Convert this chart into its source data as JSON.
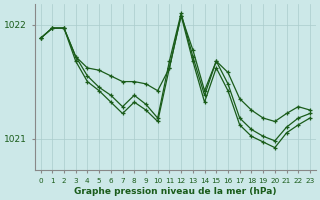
{
  "title": "Graphe pression niveau de la mer (hPa)",
  "bg_color": "#cce8e8",
  "grid_color": "#aacccc",
  "line_color": "#1a5c1a",
  "xlim": [
    -0.5,
    23.5
  ],
  "ylim": [
    1020.72,
    1022.18
  ],
  "yticks": [
    1021,
    1022
  ],
  "xticks": [
    0,
    1,
    2,
    3,
    4,
    5,
    6,
    7,
    8,
    9,
    10,
    11,
    12,
    13,
    14,
    15,
    16,
    17,
    18,
    19,
    20,
    21,
    22,
    23
  ],
  "line_main": [
    1021.88,
    1021.97,
    1021.97,
    1021.72,
    1021.55,
    1021.45,
    1021.38,
    1021.28,
    1021.38,
    1021.3,
    1021.18,
    1021.68,
    1022.1,
    1021.72,
    1021.38,
    1021.68,
    1021.48,
    1021.18,
    1021.08,
    1021.02,
    1020.98,
    1021.1,
    1021.18,
    1021.22
  ],
  "line_upper": [
    1021.88,
    1021.97,
    1021.97,
    1021.72,
    1021.62,
    1021.6,
    1021.55,
    1021.5,
    1021.5,
    1021.48,
    1021.42,
    1021.62,
    1022.08,
    1021.78,
    1021.42,
    1021.68,
    1021.58,
    1021.35,
    1021.25,
    1021.18,
    1021.15,
    1021.22,
    1021.28,
    1021.25
  ],
  "line_lower": [
    1021.88,
    1021.97,
    1021.97,
    1021.68,
    1021.5,
    1021.42,
    1021.32,
    1021.22,
    1021.32,
    1021.25,
    1021.15,
    1021.62,
    1022.08,
    1021.68,
    1021.32,
    1021.62,
    1021.42,
    1021.12,
    1021.02,
    1020.97,
    1020.92,
    1021.05,
    1021.12,
    1021.18
  ]
}
